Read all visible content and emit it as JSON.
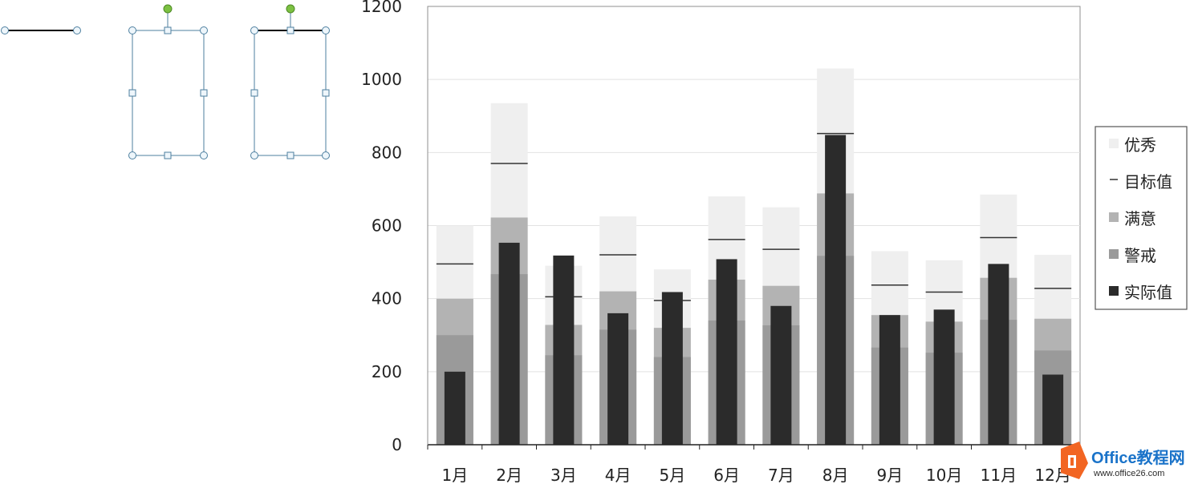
{
  "chart_data": {
    "type": "bar",
    "categories": [
      "1月",
      "2月",
      "3月",
      "4月",
      "5月",
      "6月",
      "7月",
      "8月",
      "9月",
      "10月",
      "11月",
      "12月"
    ],
    "ylim": [
      0,
      1200
    ],
    "yticks": [
      0,
      200,
      400,
      600,
      800,
      1000,
      1200
    ],
    "ytick_labels": [
      "0",
      "200",
      "400",
      "600",
      "800",
      "1000",
      "1200"
    ],
    "grid": true,
    "legend_position": "right",
    "series": [
      {
        "name": "优秀",
        "values": [
          600,
          935,
          490,
          625,
          480,
          680,
          650,
          1030,
          530,
          505,
          685,
          520
        ],
        "color": "#efefef"
      },
      {
        "name": "目标值",
        "values": [
          495,
          770,
          405,
          520,
          395,
          562,
          535,
          852,
          437,
          418,
          567,
          428
        ],
        "color": "#333333"
      },
      {
        "name": "满意",
        "values": [
          400,
          622,
          328,
          420,
          320,
          452,
          435,
          688,
          355,
          337,
          457,
          345
        ],
        "color": "#b3b3b3"
      },
      {
        "name": "警戒",
        "values": [
          300,
          467,
          245,
          315,
          240,
          340,
          327,
          517,
          266,
          252,
          342,
          258
        ],
        "color": "#9a9a9a"
      },
      {
        "name": "实际值",
        "values": [
          200,
          553,
          518,
          360,
          418,
          508,
          380,
          848,
          355,
          370,
          495,
          192
        ],
        "color": "#2b2b2b"
      }
    ]
  },
  "watermark": {
    "title": "Office教程网",
    "url": "www.office26.com",
    "colors": {
      "orange": "#f26522",
      "blue": "#1a73c9"
    }
  },
  "shapes": [
    {
      "name": "line-shape",
      "icon": "line-with-handles"
    },
    {
      "name": "rect-shape",
      "icon": "rectangle-with-handles"
    },
    {
      "name": "rect-shape-top-line",
      "icon": "rectangle-with-top-line"
    }
  ]
}
